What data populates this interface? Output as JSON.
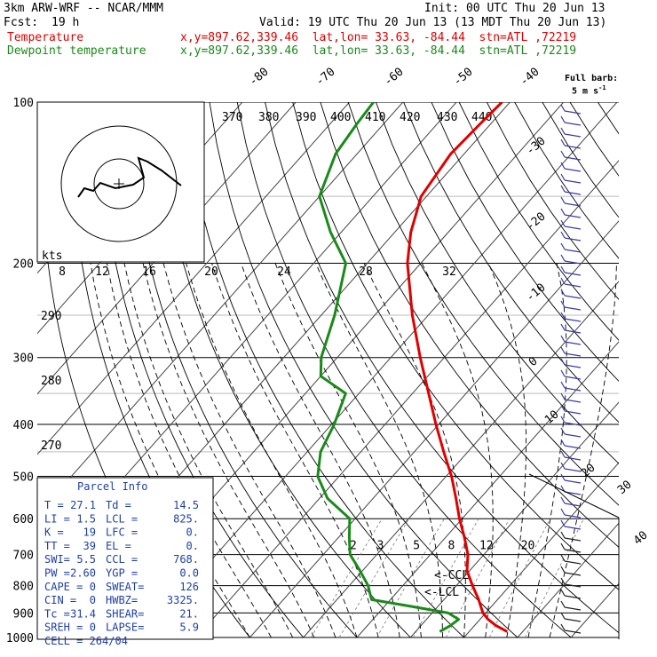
{
  "header": {
    "model": "3km ARW-WRF -- NCAR/MMM",
    "init": "Init: 00 UTC Thu 20 Jun 13",
    "fcst_label": "Fcst:",
    "fcst_value": "19 h",
    "valid": "Valid: 19 UTC Thu 20 Jun 13 (13 MDT Thu 20 Jun 13)"
  },
  "legend": {
    "temperature": {
      "label": "Temperature",
      "info": "x,y=897.62,339.46  lat,lon= 33.63, -84.44  stn=ATL ,72219",
      "color": "#e00000"
    },
    "dewpoint": {
      "label": "Dewpoint temperature",
      "info": "x,y=897.62,339.46  lat,lon= 33.63, -84.44  stn=ATL ,72219",
      "color": "#1a8a1a"
    }
  },
  "barb_legend": {
    "line1": "Full barb:",
    "line2": "5 m s",
    "exp": "-1"
  },
  "parcel_info": {
    "title": "Parcel Info",
    "rows": [
      [
        "T  =",
        "27.1",
        "Td =",
        "14.5"
      ],
      [
        "LI =",
        "1.5",
        "LCL =",
        "825."
      ],
      [
        "K  =",
        "19",
        "LFC =",
        "0."
      ],
      [
        "TT =",
        "39",
        "EL  =",
        "0."
      ],
      [
        "SWI=",
        "5.5",
        "CCL =",
        "768."
      ],
      [
        "PW =",
        "2.60",
        "YGP =",
        "0.0"
      ],
      [
        "CAPE =",
        "0",
        "SWEAT=",
        "126"
      ],
      [
        "CIN  =",
        "0",
        "HWBZ=",
        "3325."
      ],
      [
        "Tc =",
        "31.4",
        "SHEAR=",
        "21."
      ],
      [
        "SREH =",
        "0",
        "LAPSE=",
        "5.9"
      ],
      [
        "CELL = 264/04",
        "",
        "",
        ""
      ]
    ]
  },
  "annotations": {
    "ccl": "CCL",
    "lcl": "LCL",
    "hodo_kts": "kts"
  },
  "chart_data": {
    "type": "line",
    "title": "",
    "y_axis": {
      "scale": "log-pressure",
      "range": [
        1000,
        100
      ],
      "ticks": [
        100,
        200,
        300,
        400,
        500,
        600,
        700,
        800,
        900,
        1000
      ]
    },
    "isotherm_labels": [
      -80,
      -70,
      -60,
      -50,
      -40,
      -30,
      -20,
      -10,
      0,
      10,
      20,
      30,
      40
    ],
    "theta_labels": [
      370,
      380,
      390,
      400,
      410,
      420,
      430,
      440
    ],
    "theta_e_labels_left": [
      290,
      280,
      270
    ],
    "mixing_ratio_labels": [
      2,
      3,
      5,
      8,
      12,
      20
    ],
    "hodograph_speed_labels": [
      8,
      12,
      16,
      20,
      24,
      28,
      32
    ],
    "series": [
      {
        "name": "Temperature",
        "color": "#e00000",
        "pressure": [
          975,
          950,
          925,
          900,
          875,
          850,
          800,
          750,
          700,
          650,
          600,
          550,
          500,
          450,
          400,
          350,
          300,
          250,
          200,
          175,
          150,
          125,
          110,
          100
        ],
        "temp_c": [
          27.1,
          24.0,
          21.5,
          19.5,
          18.0,
          16.5,
          13.0,
          9.5,
          7.0,
          3.5,
          -0.5,
          -4.5,
          -9.0,
          -14.5,
          -20.5,
          -27.0,
          -34.5,
          -43.0,
          -52.5,
          -57.0,
          -61.0,
          -62.5,
          -62.0,
          -61.5
        ]
      },
      {
        "name": "Dewpoint temperature",
        "color": "#1a8a1a",
        "pressure": [
          975,
          950,
          925,
          900,
          875,
          850,
          825,
          800,
          750,
          700,
          650,
          600,
          550,
          500,
          450,
          400,
          350,
          325,
          300,
          250,
          200,
          175,
          150,
          125,
          110,
          100
        ],
        "temp_c": [
          14.5,
          15.5,
          16.0,
          13.0,
          5.0,
          -3.5,
          -5.0,
          -6.5,
          -10.5,
          -15.0,
          -18.0,
          -21.0,
          -28.5,
          -34.0,
          -37.5,
          -39.5,
          -42.5,
          -50.0,
          -53.0,
          -57.5,
          -64.0,
          -72.0,
          -80.0,
          -84.0,
          -85.0,
          -85.5
        ]
      }
    ]
  }
}
